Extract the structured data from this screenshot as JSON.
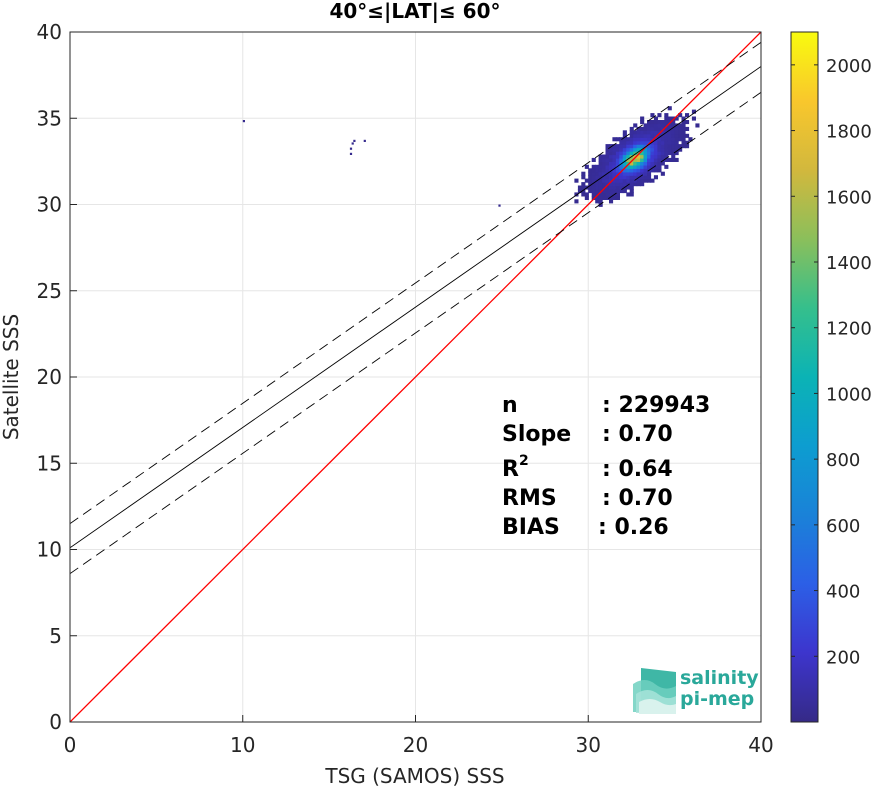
{
  "chart_data": {
    "type": "heatmap",
    "title": "40°≤|LAT|≤ 60°",
    "xlabel": "TSG (SAMOS) SSS",
    "ylabel": "Satellite SSS",
    "xlim": [
      0,
      40
    ],
    "ylim": [
      0,
      40
    ],
    "xticks": [
      0,
      10,
      20,
      30,
      40
    ],
    "yticks": [
      0,
      5,
      10,
      15,
      20,
      25,
      30,
      35,
      40
    ],
    "grid": true,
    "colorbar": {
      "range": [
        0,
        2100
      ],
      "ticks": [
        200,
        400,
        600,
        800,
        1000,
        1200,
        1400,
        1600,
        1800,
        2000
      ],
      "colormap": "parula"
    },
    "density": {
      "center": [
        32.6,
        32.6
      ],
      "peak": 2100,
      "main_extent_x": [
        27.0,
        36.8
      ],
      "main_extent_y": [
        28.7,
        36.2
      ],
      "outliers": [
        [
          10.0,
          34.9
        ],
        [
          16.2,
          33.0
        ],
        [
          16.2,
          33.3
        ],
        [
          16.3,
          33.6
        ],
        [
          16.4,
          33.75
        ],
        [
          17.0,
          33.75
        ],
        [
          24.8,
          30.0
        ]
      ]
    },
    "lines": [
      {
        "label": "1:1",
        "color": "#ff0000",
        "style": "solid",
        "x": [
          0,
          40
        ],
        "y": [
          0,
          40
        ]
      },
      {
        "label": "fit",
        "color": "#000000",
        "style": "solid",
        "x": [
          0,
          40
        ],
        "y": [
          10.1,
          38.0
        ]
      },
      {
        "label": "fit+",
        "color": "#000000",
        "style": "dashed",
        "x": [
          0,
          40
        ],
        "y": [
          11.5,
          39.4
        ]
      },
      {
        "label": "fit-",
        "color": "#000000",
        "style": "dashed",
        "x": [
          0,
          40
        ],
        "y": [
          8.6,
          36.5
        ]
      }
    ],
    "stats": [
      {
        "label": "n",
        "value": ": 229943"
      },
      {
        "label": "Slope",
        "value": ": 0.70"
      },
      {
        "label": "R",
        "sup": "2",
        "value": ": 0.64"
      },
      {
        "label": "RMS",
        "value": ": 0.70"
      },
      {
        "label": "BIAS",
        "value": ": 0.26"
      }
    ]
  },
  "logo": {
    "line1": "salinity",
    "line2": "pi-mep"
  }
}
